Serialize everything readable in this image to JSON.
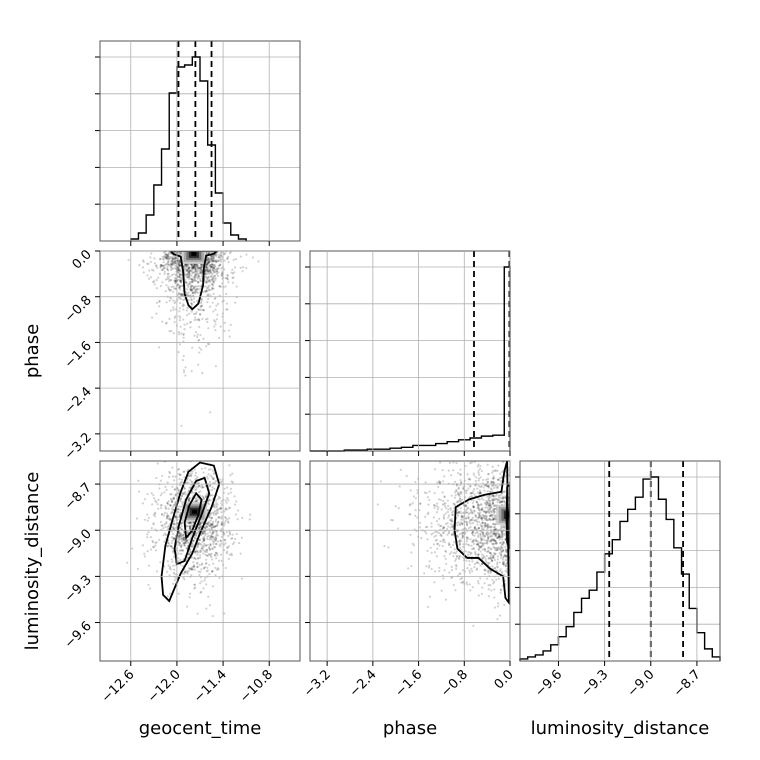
{
  "chart_data": {
    "type": "corner",
    "parameters": [
      "geocent_time",
      "phase",
      "luminosity_distance"
    ],
    "ranges": {
      "geocent_time": [
        -13.0,
        -10.4
      ],
      "phase": [
        -3.5,
        0.0
      ],
      "luminosity_distance": [
        -9.85,
        -8.55
      ]
    },
    "ticks": {
      "geocent_time": [
        -12.6,
        -12.0,
        -11.4,
        -10.8
      ],
      "phase": [
        -3.2,
        -2.4,
        -1.6,
        -0.8,
        0.0
      ],
      "luminosity_distance": [
        -9.6,
        -9.3,
        -9.0,
        -8.7
      ]
    },
    "tick_labels": {
      "geocent_time": [
        "−12.6",
        "−12.0",
        "−11.4",
        "−10.8"
      ],
      "phase": [
        "−3.2",
        "−2.4",
        "−1.6",
        "−0.8",
        "0.0"
      ],
      "luminosity_distance": [
        "−9.6",
        "−9.3",
        "−9.0",
        "−8.7"
      ]
    },
    "axis_labels": {
      "x": [
        "geocent_time",
        "phase",
        "luminosity_distance"
      ],
      "y": [
        "phase",
        "luminosity_distance"
      ]
    },
    "histograms": {
      "geocent_time": {
        "edges": [
          -12.6,
          -12.5,
          -12.4,
          -12.3,
          -12.2,
          -12.1,
          -12.0,
          -11.9,
          -11.8,
          -11.7,
          -11.6,
          -11.5,
          -11.4,
          -11.3,
          -11.2,
          -11.1
        ],
        "counts": [
          0.01,
          0.04,
          0.13,
          0.28,
          0.46,
          0.74,
          0.87,
          0.88,
          0.92,
          0.8,
          0.48,
          0.24,
          0.09,
          0.03,
          0.01
        ],
        "quantiles": [
          -11.98,
          -11.76,
          -11.55
        ]
      },
      "phase": {
        "edges": [
          -3.5,
          -3.3,
          -3.1,
          -2.9,
          -2.7,
          -2.5,
          -2.3,
          -2.1,
          -1.9,
          -1.7,
          -1.5,
          -1.3,
          -1.1,
          -0.9,
          -0.7,
          -0.5,
          -0.3,
          -0.1,
          0.0
        ],
        "counts": [
          0.0,
          0.0,
          0.0,
          0.005,
          0.005,
          0.01,
          0.01,
          0.015,
          0.02,
          0.03,
          0.03,
          0.04,
          0.05,
          0.06,
          0.07,
          0.08,
          0.085,
          0.99
        ],
        "quantiles": [
          -0.63,
          -0.01
        ]
      },
      "luminosity_distance": {
        "edges": [
          -9.85,
          -9.8,
          -9.75,
          -9.7,
          -9.65,
          -9.6,
          -9.55,
          -9.5,
          -9.45,
          -9.4,
          -9.35,
          -9.3,
          -9.25,
          -9.2,
          -9.15,
          -9.1,
          -9.05,
          -9.0,
          -8.95,
          -8.9,
          -8.85,
          -8.8,
          -8.75,
          -8.7,
          -8.65,
          -8.6,
          -8.55
        ],
        "counts": [
          0.01,
          0.02,
          0.03,
          0.05,
          0.08,
          0.12,
          0.17,
          0.24,
          0.31,
          0.35,
          0.44,
          0.53,
          0.6,
          0.69,
          0.75,
          0.81,
          0.9,
          0.91,
          0.8,
          0.7,
          0.56,
          0.43,
          0.26,
          0.14,
          0.06,
          0.02
        ],
        "quantiles": [
          -9.27,
          -9.0,
          -8.79
        ]
      }
    },
    "scatter_panels": [
      {
        "x": "geocent_time",
        "y": "phase",
        "mean": [
          -11.78,
          -0.55
        ],
        "std": [
          0.22,
          0.6
        ],
        "contours": [
          [
            [
              -12.08,
              0.0
            ],
            [
              -12.05,
              -0.05
            ],
            [
              -11.95,
              -0.1
            ],
            [
              -11.92,
              -0.35
            ],
            [
              -11.9,
              -0.75
            ],
            [
              -11.85,
              -0.95
            ],
            [
              -11.8,
              -1.02
            ],
            [
              -11.72,
              -0.92
            ],
            [
              -11.66,
              -0.6
            ],
            [
              -11.65,
              -0.3
            ],
            [
              -11.62,
              -0.08
            ],
            [
              -11.52,
              -0.05
            ],
            [
              -11.48,
              0.0
            ]
          ]
        ],
        "density_peak": [
          -11.78,
          -0.05
        ]
      },
      {
        "x": "geocent_time",
        "y": "luminosity_distance",
        "mean": [
          -11.78,
          -8.96
        ],
        "std": [
          0.24,
          0.17
        ],
        "contours": [
          [
            [
              -12.18,
              -9.42
            ],
            [
              -12.1,
              -9.46
            ],
            [
              -11.95,
              -9.28
            ],
            [
              -11.8,
              -9.15
            ],
            [
              -11.7,
              -9.02
            ],
            [
              -11.55,
              -8.85
            ],
            [
              -11.45,
              -8.7
            ],
            [
              -11.52,
              -8.58
            ],
            [
              -11.7,
              -8.56
            ],
            [
              -11.85,
              -8.62
            ],
            [
              -11.95,
              -8.75
            ],
            [
              -12.05,
              -8.92
            ],
            [
              -12.15,
              -9.1
            ],
            [
              -12.2,
              -9.3
            ]
          ],
          [
            [
              -12.0,
              -9.22
            ],
            [
              -11.9,
              -9.2
            ],
            [
              -11.8,
              -9.05
            ],
            [
              -11.68,
              -8.9
            ],
            [
              -11.58,
              -8.76
            ],
            [
              -11.64,
              -8.66
            ],
            [
              -11.75,
              -8.68
            ],
            [
              -11.88,
              -8.8
            ],
            [
              -11.98,
              -8.98
            ],
            [
              -12.03,
              -9.12
            ]
          ],
          [
            [
              -11.88,
              -9.05
            ],
            [
              -11.8,
              -9.0
            ],
            [
              -11.72,
              -8.9
            ],
            [
              -11.68,
              -8.8
            ],
            [
              -11.75,
              -8.76
            ],
            [
              -11.84,
              -8.84
            ],
            [
              -11.9,
              -8.95
            ]
          ]
        ],
        "density_peak": [
          -11.77,
          -8.88
        ]
      },
      {
        "x": "phase",
        "y": "luminosity_distance",
        "mean": [
          -0.5,
          -8.97
        ],
        "std": [
          0.7,
          0.19
        ],
        "contours": [
          [
            [
              -0.02,
              -9.47
            ],
            [
              -0.08,
              -9.44
            ],
            [
              -0.12,
              -9.3
            ],
            [
              -0.35,
              -9.25
            ],
            [
              -0.55,
              -9.18
            ],
            [
              -0.75,
              -9.18
            ],
            [
              -0.92,
              -9.12
            ],
            [
              -0.97,
              -9.0
            ],
            [
              -0.95,
              -8.85
            ],
            [
              -0.72,
              -8.8
            ],
            [
              -0.45,
              -8.77
            ],
            [
              -0.15,
              -8.75
            ],
            [
              -0.1,
              -8.62
            ],
            [
              -0.05,
              -8.55
            ]
          ],
          [
            [
              0.0,
              -9.12
            ],
            [
              -0.05,
              -9.08
            ],
            [
              -0.06,
              -8.95
            ],
            [
              -0.05,
              -8.72
            ],
            [
              0.0,
              -8.7
            ]
          ]
        ],
        "density_peak": [
          -0.02,
          -8.9
        ]
      }
    ]
  }
}
